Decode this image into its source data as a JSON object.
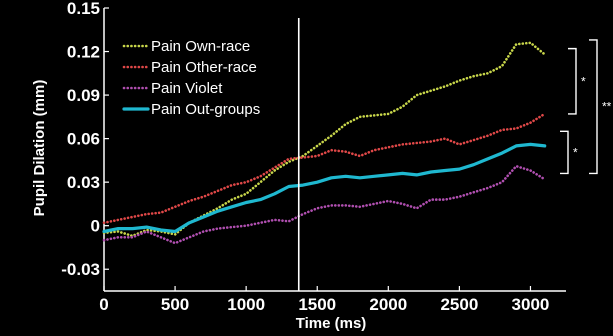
{
  "chart_data": {
    "type": "line",
    "xlabel": "Time (ms)",
    "ylabel": "Pupil Dilation (mm)",
    "xlim": [
      0,
      3250
    ],
    "ylim": [
      -0.045,
      0.15
    ],
    "x_ticks": [
      0,
      500,
      1000,
      1500,
      2000,
      2500,
      3000
    ],
    "y_ticks": [
      -0.03,
      0,
      0.03,
      0.06,
      0.09,
      0.12,
      0.15
    ],
    "y_tick_labels": [
      "-0.03",
      "0",
      "0.03",
      "0.06",
      "0.09",
      "0.12",
      "0.15"
    ],
    "grid": false,
    "legend_position": "top-left",
    "vertical_marker_x": 1370,
    "x": [
      0,
      100,
      200,
      300,
      400,
      500,
      600,
      700,
      800,
      900,
      1000,
      1100,
      1200,
      1300,
      1400,
      1500,
      1600,
      1700,
      1800,
      1900,
      2000,
      2100,
      2200,
      2300,
      2400,
      2500,
      2600,
      2700,
      2800,
      2900,
      3000,
      3100
    ],
    "series": [
      {
        "name": "Pain Own-race",
        "color": "#c8d64a",
        "dash": "dotted",
        "values": [
          -0.005,
          -0.004,
          -0.007,
          -0.003,
          -0.004,
          -0.006,
          0.002,
          0.007,
          0.012,
          0.018,
          0.022,
          0.03,
          0.038,
          0.044,
          0.048,
          0.055,
          0.062,
          0.07,
          0.075,
          0.076,
          0.077,
          0.082,
          0.09,
          0.093,
          0.096,
          0.1,
          0.103,
          0.105,
          0.11,
          0.125,
          0.126,
          0.118
        ]
      },
      {
        "name": "Pain Other-race",
        "color": "#e04848",
        "dash": "dotted",
        "values": [
          0.002,
          0.004,
          0.006,
          0.008,
          0.009,
          0.013,
          0.017,
          0.02,
          0.024,
          0.028,
          0.03,
          0.034,
          0.04,
          0.046,
          0.047,
          0.048,
          0.052,
          0.051,
          0.048,
          0.052,
          0.054,
          0.056,
          0.057,
          0.058,
          0.06,
          0.056,
          0.059,
          0.062,
          0.066,
          0.067,
          0.071,
          0.077
        ]
      },
      {
        "name": "Pain Violet",
        "color": "#b04fb0",
        "dash": "dotted",
        "values": [
          -0.01,
          -0.008,
          -0.008,
          -0.004,
          -0.008,
          -0.012,
          -0.008,
          -0.004,
          -0.002,
          -0.001,
          0.0,
          0.002,
          0.004,
          0.003,
          0.008,
          0.012,
          0.014,
          0.014,
          0.013,
          0.015,
          0.017,
          0.015,
          0.012,
          0.018,
          0.018,
          0.02,
          0.023,
          0.026,
          0.03,
          0.041,
          0.038,
          0.032
        ]
      },
      {
        "name": "Pain Out-groups",
        "color": "#1fb8d0",
        "dash": "solid",
        "values": [
          -0.004,
          -0.002,
          -0.002,
          -0.001,
          -0.003,
          -0.004,
          0.002,
          0.006,
          0.01,
          0.013,
          0.016,
          0.018,
          0.022,
          0.027,
          0.028,
          0.03,
          0.033,
          0.034,
          0.033,
          0.034,
          0.035,
          0.036,
          0.035,
          0.037,
          0.038,
          0.039,
          0.042,
          0.046,
          0.05,
          0.055,
          0.056,
          0.055
        ]
      }
    ],
    "significance_brackets": [
      {
        "label": "*",
        "from_y": 0.122,
        "to_y": 0.077
      },
      {
        "label": "*",
        "from_y": 0.065,
        "to_y": 0.036
      },
      {
        "label": "**",
        "from_y": 0.128,
        "to_y": 0.036
      }
    ]
  }
}
